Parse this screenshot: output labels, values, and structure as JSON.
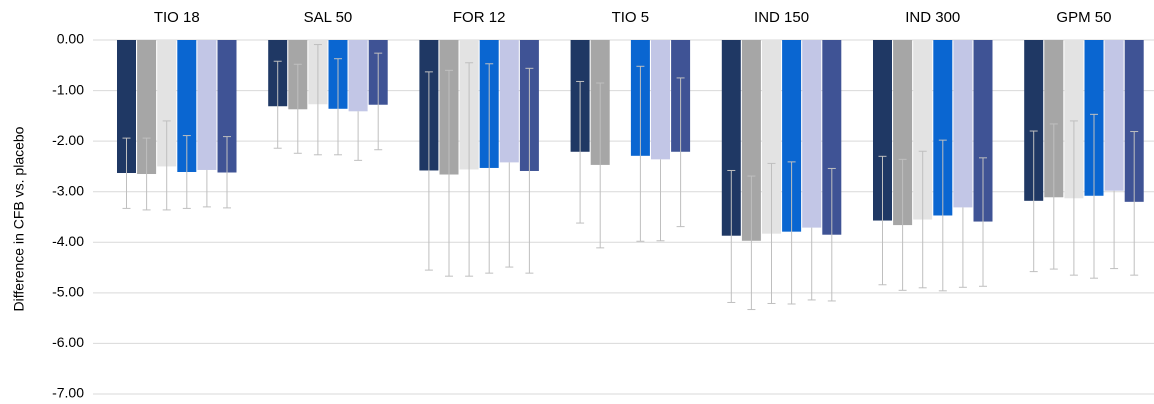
{
  "chart_data": {
    "type": "bar",
    "ylabel": "Difference in CFB vs. placebo",
    "ylim": [
      -7,
      0
    ],
    "yticks": [
      0,
      -1,
      -2,
      -3,
      -4,
      -5,
      -6,
      -7
    ],
    "ytick_labels": [
      "0.00",
      "-1.00",
      "-2.00",
      "-3.00",
      "-4.00",
      "-5.00",
      "-6.00",
      "-7.00"
    ],
    "grid": true,
    "categories": [
      "TIO 18",
      "SAL 50",
      "FOR 12",
      "TIO 5",
      "IND 150",
      "IND 300",
      "GPM 50"
    ],
    "series": [
      {
        "color": "#1f3864",
        "values": [
          -2.63,
          -1.31,
          -2.58,
          -2.21,
          -3.87,
          -3.57,
          -3.18
        ],
        "err_low": [
          -3.33,
          -2.14,
          -4.55,
          -3.62,
          -5.19,
          -4.84,
          -4.58
        ],
        "err_high": [
          -1.94,
          -0.42,
          -0.63,
          -0.82,
          -2.58,
          -2.3,
          -1.8
        ]
      },
      {
        "color": "#a6a6a6",
        "values": [
          -2.65,
          -1.37,
          -2.66,
          -2.47,
          -3.97,
          -3.66,
          -3.11
        ],
        "err_low": [
          -3.36,
          -2.24,
          -4.67,
          -4.11,
          -5.33,
          -4.95,
          -4.53
        ],
        "err_high": [
          -1.94,
          -0.48,
          -0.6,
          -0.85,
          -2.69,
          -2.36,
          -1.66
        ]
      },
      {
        "color": "#e3e3e3",
        "values": [
          -2.5,
          -1.27,
          -2.56,
          null,
          -3.83,
          -3.55,
          -3.13
        ],
        "err_low": [
          -3.36,
          -2.27,
          -4.67,
          null,
          -5.21,
          -4.9,
          -4.65
        ],
        "err_high": [
          -1.6,
          -0.09,
          -0.45,
          null,
          -2.44,
          -2.2,
          -1.6
        ]
      },
      {
        "color": "#0a66d1",
        "values": [
          -2.61,
          -1.36,
          -2.53,
          -2.29,
          -3.79,
          -3.47,
          -3.08
        ],
        "err_low": [
          -3.33,
          -2.27,
          -4.61,
          -3.98,
          -5.22,
          -4.96,
          -4.71
        ],
        "err_high": [
          -1.89,
          -0.37,
          -0.47,
          -0.52,
          -2.41,
          -1.98,
          -1.47
        ]
      },
      {
        "color": "#c2c6e6",
        "values": [
          -2.57,
          -1.41,
          -2.42,
          -2.36,
          -3.71,
          -3.31,
          -2.98
        ],
        "err_low": [
          -3.3,
          -2.38,
          -4.49,
          -3.97,
          -5.14,
          -4.89,
          -4.52
        ],
        "err_high": null
      },
      {
        "color": "#3f5395",
        "values": [
          -2.62,
          -1.28,
          -2.59,
          -2.21,
          -3.85,
          -3.59,
          -3.2
        ],
        "err_low": [
          -3.32,
          -2.17,
          -4.61,
          -3.69,
          -5.16,
          -4.87,
          -4.65
        ],
        "err_high": [
          -1.91,
          -0.26,
          -0.56,
          -0.75,
          -2.54,
          -2.33,
          -1.81
        ]
      }
    ]
  }
}
